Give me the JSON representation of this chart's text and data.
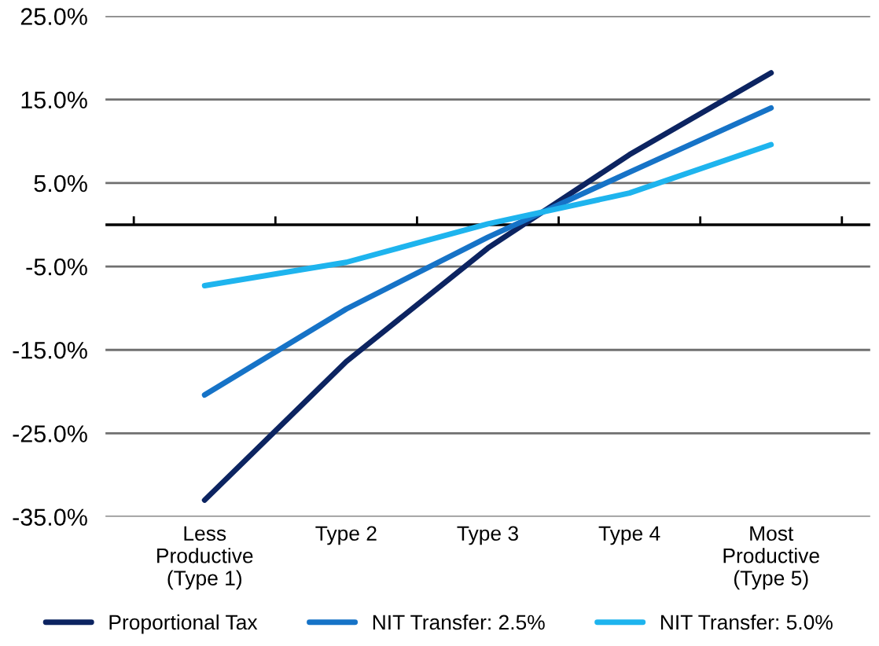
{
  "chart_data": {
    "type": "line",
    "categories": [
      "Less\nProductive\n(Type 1)",
      "Type 2",
      "Type 3",
      "Type 4",
      "Most\nProductive\n(Type 5)"
    ],
    "series": [
      {
        "name": "Proportional Tax",
        "color": "#0c2461",
        "values": [
          -33.0,
          -16.4,
          -2.8,
          8.4,
          18.2
        ]
      },
      {
        "name": "NIT Transfer: 2.5%",
        "color": "#1673c7",
        "values": [
          -20.4,
          -10.1,
          -1.5,
          6.3,
          14.0
        ]
      },
      {
        "name": "NIT Transfer: 5.0%",
        "color": "#1eb4ee",
        "values": [
          -7.3,
          -4.5,
          0.1,
          3.8,
          9.6
        ]
      }
    ],
    "ylim": [
      -35,
      25
    ],
    "yticks": [
      {
        "value": -35,
        "label": "-35.0%"
      },
      {
        "value": -25,
        "label": "-25.0%"
      },
      {
        "value": -15,
        "label": "-15.0%"
      },
      {
        "value": -5,
        "label": "-5.0%"
      },
      {
        "value": 5,
        "label": "5.0%"
      },
      {
        "value": 15,
        "label": "15.0%"
      },
      {
        "value": 25,
        "label": "25.0%"
      }
    ],
    "grid": "y",
    "legend": "bottom",
    "marker": "none",
    "line_style": "solid"
  }
}
